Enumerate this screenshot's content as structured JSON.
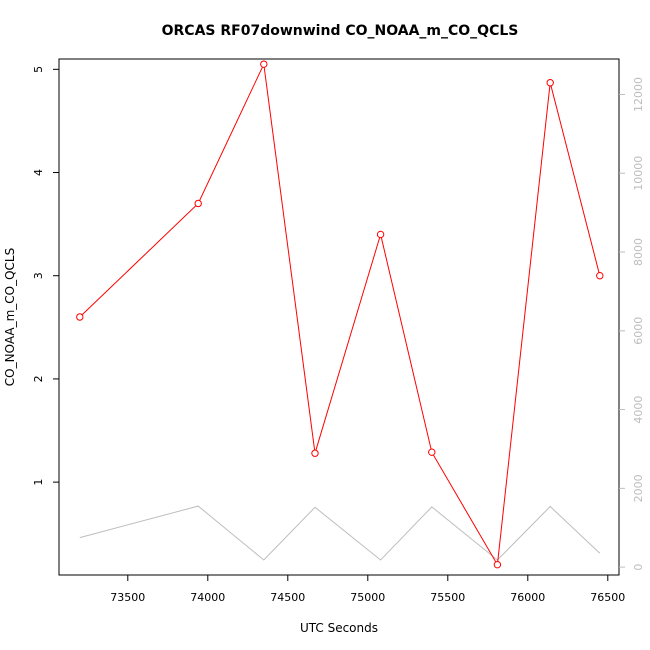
{
  "chart_data": {
    "type": "line",
    "title": "ORCAS RF07downwind CO_NOAA_m_CO_QCLS",
    "xlabel": "UTC Seconds",
    "ylabel": "CO_NOAA_m_CO_QCLS",
    "xlim": [
      73070,
      76570
    ],
    "ylim": [
      0.1,
      5.1
    ],
    "y2lim": [
      -200,
      12900
    ],
    "x_ticks": [
      73500,
      74000,
      74500,
      75000,
      75500,
      76000,
      76500
    ],
    "x_tick_labels": [
      "73500",
      "74000",
      "74500",
      "75000",
      "75500",
      "76000",
      "76500"
    ],
    "y_ticks": [
      1,
      2,
      3,
      4,
      5
    ],
    "y_tick_labels": [
      "1",
      "2",
      "3",
      "4",
      "5"
    ],
    "y2_ticks": [
      0,
      2000,
      4000,
      6000,
      8000,
      10000,
      12000
    ],
    "y2_tick_labels": [
      "0",
      "2000",
      "4000",
      "6000",
      "8000",
      "10000",
      "12000"
    ],
    "colors": {
      "primary": "#ff0000",
      "secondary": "#bdbdbd",
      "axis": "#000000"
    },
    "series": [
      {
        "axis": "left",
        "style": "line-points",
        "color": "#ff0000",
        "x": [
          73200,
          73940,
          74350,
          74670,
          75080,
          75400,
          75810,
          76140,
          76450
        ],
        "values": [
          2.6,
          3.7,
          5.05,
          1.28,
          3.4,
          1.29,
          0.2,
          4.87,
          3.0
        ]
      },
      {
        "axis": "right",
        "style": "line",
        "color": "#bdbdbd",
        "x": [
          73200,
          73940,
          74350,
          74670,
          75080,
          75400,
          75810,
          76140,
          76450
        ],
        "values": [
          750,
          1550,
          180,
          1520,
          180,
          1530,
          180,
          1540,
          350
        ]
      }
    ]
  }
}
